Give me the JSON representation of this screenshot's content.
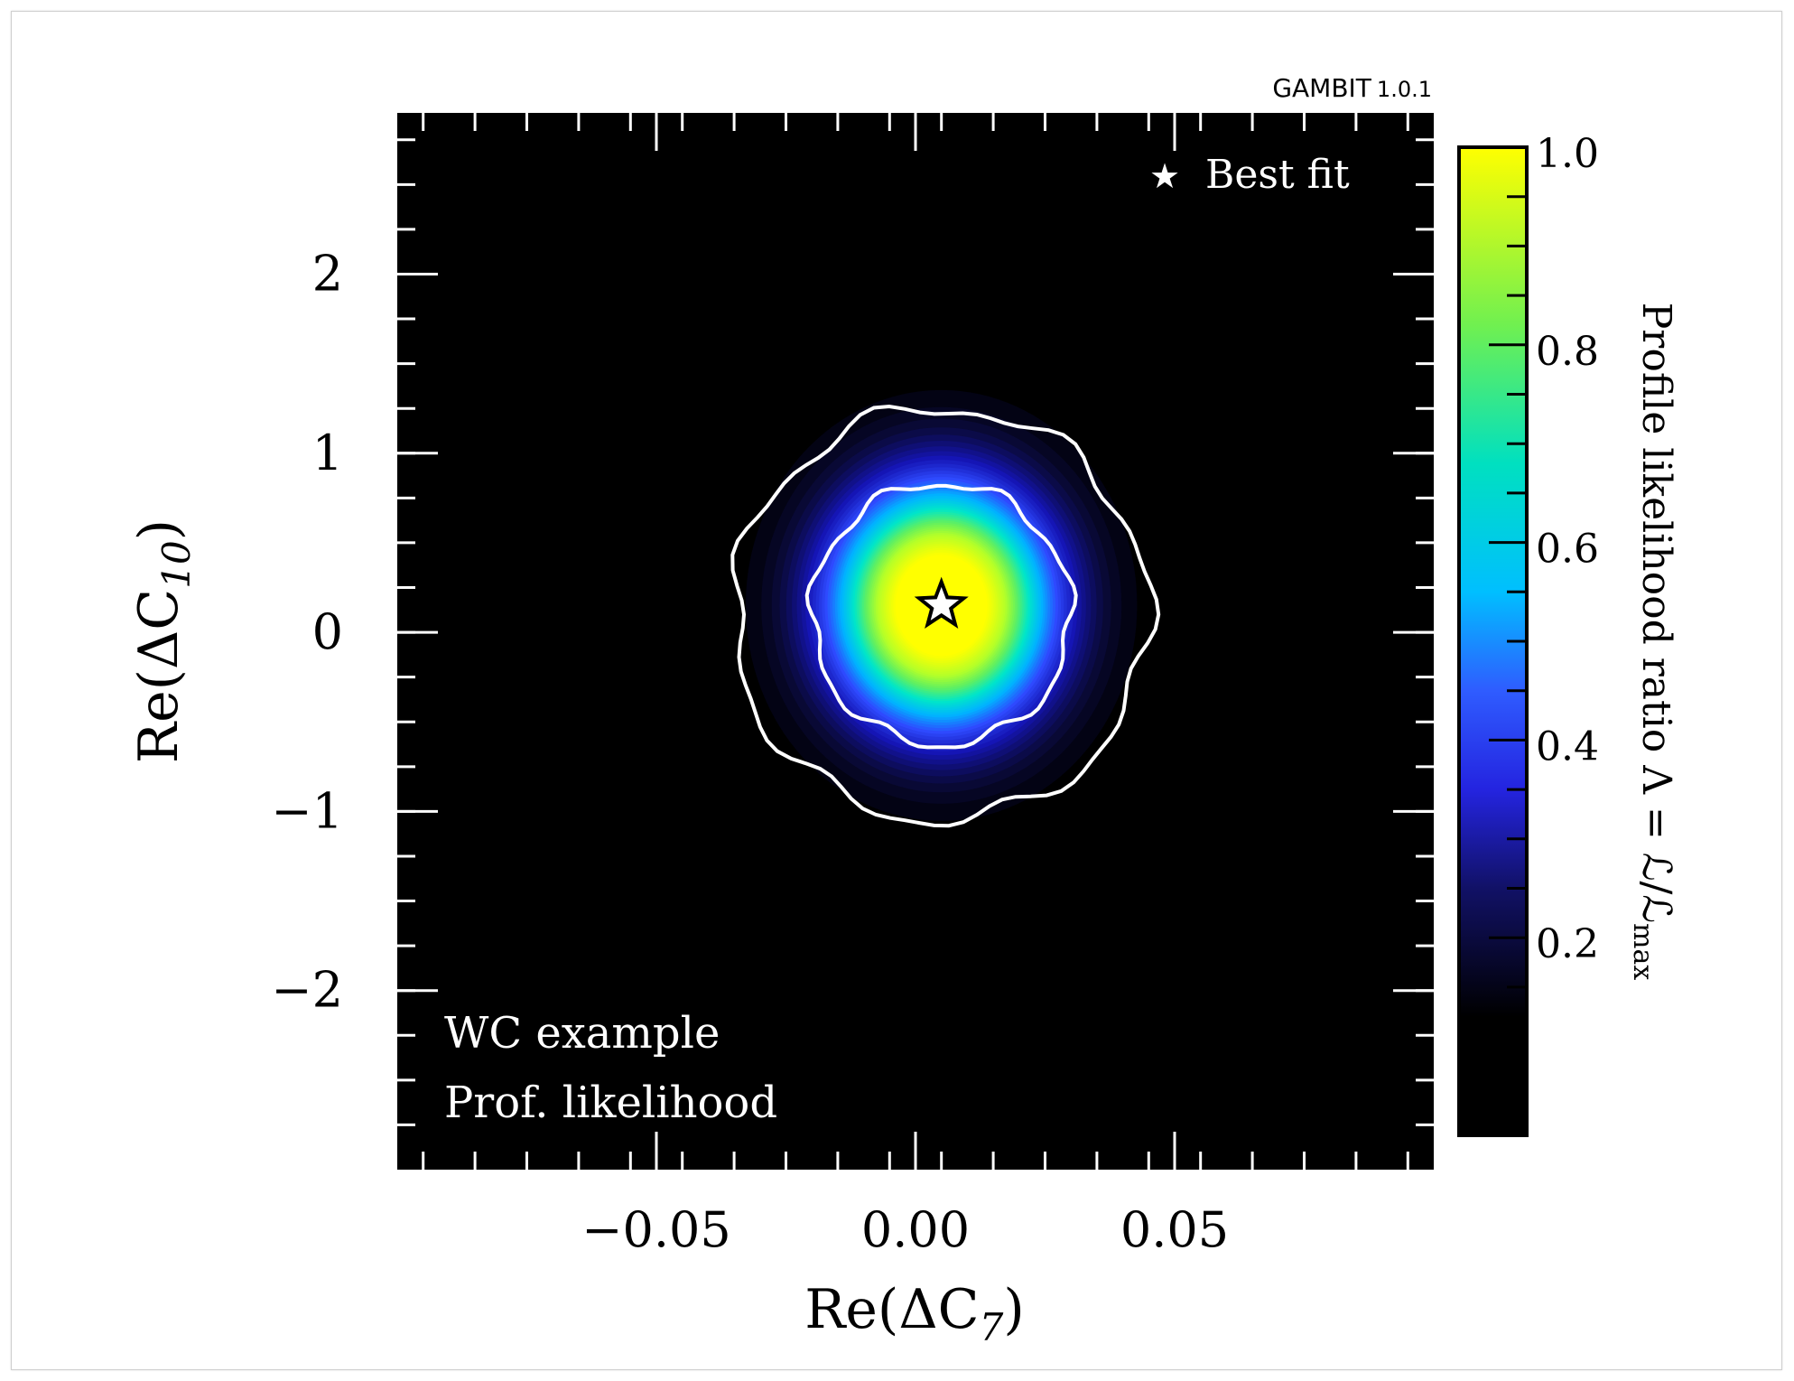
{
  "watermark": {
    "name": "GAMBIT",
    "version": "1.0.1"
  },
  "chart_data": {
    "type": "heatmap",
    "title": "",
    "xlabel": {
      "base": "Re(ΔC",
      "sub": "7",
      "close": ")"
    },
    "ylabel": {
      "base": "Re(ΔC",
      "sub": "10",
      "close": ")"
    },
    "xlim": [
      -0.1,
      0.1
    ],
    "ylim": [
      -3,
      2.9
    ],
    "x_ticks": [
      -0.05,
      0.0,
      0.05
    ],
    "x_tick_labels": [
      "−0.05",
      "0.00",
      "0.05"
    ],
    "y_ticks": [
      -2,
      -1,
      0,
      1,
      2
    ],
    "y_tick_labels": [
      "−2",
      "−1",
      "0",
      "1",
      "2"
    ],
    "best_fit": {
      "x": 0.005,
      "y": 0.15
    },
    "peak_width": {
      "x": 0.0135,
      "y": 0.43
    },
    "contours": [
      {
        "level": "1sigma",
        "rx": 0.025,
        "ry": 0.73
      },
      {
        "level": "2sigma",
        "rx": 0.04,
        "ry": 1.15
      }
    ],
    "colorbar": {
      "label": "Profile likelihood ratio Λ = ℒ/ℒ",
      "label_sub": "max",
      "range": [
        0,
        1.0
      ],
      "tick_labels": [
        "0.2",
        "0.4",
        "0.6",
        "0.8",
        "1.0"
      ],
      "ticks": [
        0.2,
        0.4,
        0.6,
        0.8,
        1.0
      ],
      "colors": [
        "#000000",
        "#0a0a3c",
        "#1515b4",
        "#2e4bff",
        "#00b4ff",
        "#00e6c8",
        "#60f060",
        "#b4ff28",
        "#ffff00"
      ]
    },
    "legend": {
      "marker": "★",
      "label": "Best fit",
      "placement": "top-right"
    },
    "annotations": [
      "WC example",
      "Prof. likelihood"
    ]
  }
}
